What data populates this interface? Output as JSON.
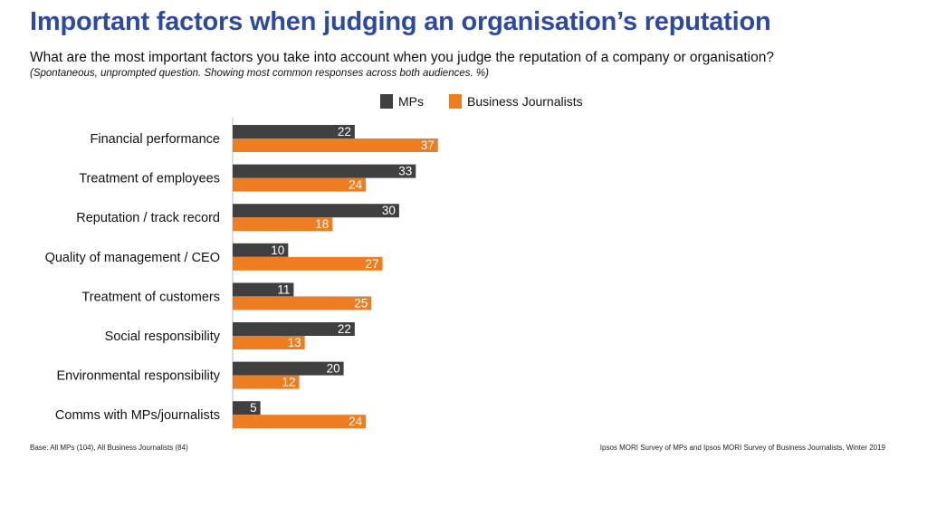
{
  "title": "Important factors when judging an organisation’s reputation",
  "subtitle": "What are the most important factors you take into account when you judge the reputation of a company or organisation?",
  "note": "(Spontaneous, unprompted question. Showing most common responses across both audiences. %)",
  "footer": {
    "left": "Base: All MPs (104), All Business Journalists (84)",
    "right": "Ipsos MORI Survey of MPs and Ipsos MORI Survey of Business Journalists, Winter 2019"
  },
  "chart_data": {
    "type": "bar",
    "orientation": "horizontal",
    "categories": [
      "Financial performance",
      "Treatment of employees",
      "Reputation / track record",
      "Quality of management / CEO",
      "Treatment of customers",
      "Social responsibility",
      "Environmental responsibility",
      "Comms with MPs/journalists"
    ],
    "series": [
      {
        "name": "MPs",
        "color": "#404040",
        "values": [
          22,
          33,
          30,
          10,
          11,
          22,
          20,
          5
        ]
      },
      {
        "name": "Business Journalists",
        "color": "#ee7d22",
        "values": [
          37,
          24,
          18,
          27,
          25,
          13,
          12,
          24
        ]
      }
    ],
    "legend": "top",
    "grid": false,
    "xlim": [
      0,
      100
    ]
  }
}
